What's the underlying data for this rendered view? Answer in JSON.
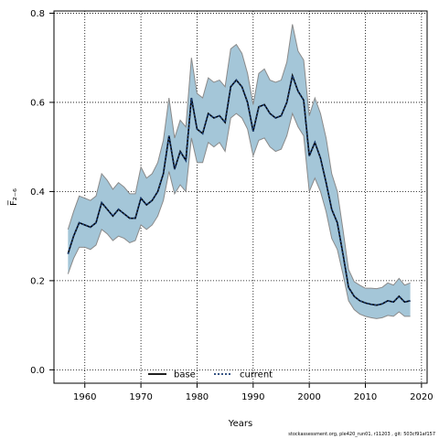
{
  "chart_data": {
    "type": "line",
    "xlabel": "Years",
    "ylabel": "F̅₂₋₆",
    "xlim": [
      1954.5,
      2021
    ],
    "ylim": [
      -0.03,
      0.805
    ],
    "xticks": [
      1960,
      1970,
      1980,
      1990,
      2000,
      2010,
      2020
    ],
    "yticks": [
      0.0,
      0.2,
      0.4,
      0.6,
      0.8
    ],
    "grid": true,
    "legend_position": "bottom-center",
    "x": [
      1957,
      1958,
      1959,
      1960,
      1961,
      1962,
      1963,
      1964,
      1965,
      1966,
      1967,
      1968,
      1969,
      1970,
      1971,
      1972,
      1973,
      1974,
      1975,
      1976,
      1977,
      1978,
      1979,
      1980,
      1981,
      1982,
      1983,
      1984,
      1985,
      1986,
      1987,
      1988,
      1989,
      1990,
      1991,
      1992,
      1993,
      1994,
      1995,
      1996,
      1997,
      1998,
      1999,
      2000,
      2001,
      2002,
      2003,
      2004,
      2005,
      2006,
      2007,
      2008,
      2009,
      2010,
      2011,
      2012,
      2013,
      2014,
      2015,
      2016,
      2017,
      2018
    ],
    "series": [
      {
        "name": "base",
        "color": "#000000",
        "values": [
          0.26,
          0.3,
          0.33,
          0.325,
          0.32,
          0.33,
          0.375,
          0.36,
          0.345,
          0.36,
          0.35,
          0.34,
          0.34,
          0.385,
          0.37,
          0.38,
          0.4,
          0.44,
          0.525,
          0.45,
          0.49,
          0.47,
          0.61,
          0.54,
          0.53,
          0.575,
          0.565,
          0.57,
          0.555,
          0.635,
          0.65,
          0.635,
          0.6,
          0.535,
          0.59,
          0.595,
          0.575,
          0.565,
          0.57,
          0.6,
          0.66,
          0.625,
          0.605,
          0.48,
          0.51,
          0.475,
          0.42,
          0.36,
          0.33,
          0.26,
          0.185,
          0.165,
          0.155,
          0.15,
          0.147,
          0.145,
          0.148,
          0.155,
          0.152,
          0.165,
          0.152,
          0.155
        ]
      },
      {
        "name": "current",
        "color": "#1b3d73",
        "values": [
          0.26,
          0.3,
          0.33,
          0.325,
          0.32,
          0.33,
          0.375,
          0.36,
          0.345,
          0.36,
          0.35,
          0.34,
          0.34,
          0.385,
          0.37,
          0.38,
          0.4,
          0.44,
          0.525,
          0.45,
          0.49,
          0.47,
          0.61,
          0.54,
          0.53,
          0.575,
          0.565,
          0.57,
          0.555,
          0.635,
          0.65,
          0.635,
          0.6,
          0.535,
          0.59,
          0.595,
          0.575,
          0.565,
          0.57,
          0.6,
          0.66,
          0.625,
          0.605,
          0.48,
          0.51,
          0.475,
          0.42,
          0.36,
          0.33,
          0.26,
          0.185,
          0.165,
          0.155,
          0.15,
          0.147,
          0.145,
          0.148,
          0.155,
          0.152,
          0.165,
          0.152,
          0.155
        ]
      }
    ],
    "band": {
      "fill": "#a4c6d8",
      "stroke": "#8a8a8a",
      "lower": [
        0.215,
        0.25,
        0.275,
        0.275,
        0.27,
        0.28,
        0.315,
        0.305,
        0.29,
        0.3,
        0.295,
        0.285,
        0.29,
        0.325,
        0.315,
        0.325,
        0.345,
        0.38,
        0.445,
        0.395,
        0.415,
        0.4,
        0.52,
        0.465,
        0.465,
        0.51,
        0.5,
        0.51,
        0.49,
        0.565,
        0.575,
        0.565,
        0.54,
        0.48,
        0.515,
        0.52,
        0.5,
        0.49,
        0.495,
        0.525,
        0.575,
        0.545,
        0.525,
        0.4,
        0.43,
        0.4,
        0.355,
        0.295,
        0.27,
        0.215,
        0.155,
        0.135,
        0.125,
        0.12,
        0.117,
        0.115,
        0.117,
        0.122,
        0.12,
        0.13,
        0.12,
        0.12
      ],
      "upper": [
        0.315,
        0.355,
        0.39,
        0.385,
        0.38,
        0.39,
        0.44,
        0.425,
        0.405,
        0.42,
        0.41,
        0.395,
        0.395,
        0.455,
        0.43,
        0.44,
        0.465,
        0.515,
        0.61,
        0.52,
        0.56,
        0.545,
        0.7,
        0.62,
        0.61,
        0.655,
        0.645,
        0.65,
        0.635,
        0.72,
        0.73,
        0.71,
        0.665,
        0.595,
        0.665,
        0.675,
        0.65,
        0.645,
        0.65,
        0.69,
        0.775,
        0.715,
        0.695,
        0.57,
        0.61,
        0.575,
        0.52,
        0.44,
        0.4,
        0.315,
        0.225,
        0.198,
        0.19,
        0.183,
        0.183,
        0.182,
        0.185,
        0.195,
        0.19,
        0.205,
        0.19,
        0.195
      ]
    }
  },
  "footer": {
    "text": "stockassessment.org, ple420_run01, r11203 , git: 503cf91af157"
  }
}
